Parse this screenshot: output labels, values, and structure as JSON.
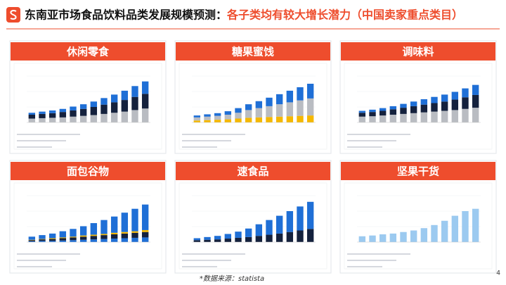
{
  "header": {
    "title_main": "东南亚市场食品饮料品类发展规模预测：",
    "title_highlight": "各子类均有较大增长潜力（中国卖家重点类目）"
  },
  "chart_data": [
    {
      "type": "bar",
      "title": "休闲零食",
      "ylim": [
        0,
        1.2
      ],
      "series": [
        {
          "color": "#b9bcc2",
          "values": [
            0.1,
            0.11,
            0.12,
            0.13,
            0.15,
            0.17,
            0.19,
            0.22,
            0.25,
            0.28,
            0.32,
            0.36
          ]
        },
        {
          "color": "#14213d",
          "values": [
            0.1,
            0.11,
            0.12,
            0.14,
            0.16,
            0.18,
            0.21,
            0.24,
            0.27,
            0.3,
            0.34,
            0.38
          ]
        },
        {
          "color": "#1f6fd6",
          "values": [
            0.05,
            0.06,
            0.07,
            0.08,
            0.1,
            0.12,
            0.14,
            0.17,
            0.2,
            0.24,
            0.28,
            0.32
          ]
        }
      ]
    },
    {
      "type": "bar",
      "title": "糖果蜜饯",
      "ylim": [
        0,
        1.2
      ],
      "series": [
        {
          "color": "#f5b800",
          "values": [
            0.05,
            0.06,
            0.07,
            0.08,
            0.1,
            0.12,
            0.13,
            0.14,
            0.15,
            0.16,
            0.17,
            0.18
          ]
        },
        {
          "color": "#b9bcc2",
          "values": [
            0.08,
            0.09,
            0.1,
            0.12,
            0.15,
            0.2,
            0.24,
            0.28,
            0.32,
            0.36,
            0.4,
            0.44
          ]
        },
        {
          "color": "#1f6fd6",
          "values": [
            0.05,
            0.06,
            0.07,
            0.09,
            0.12,
            0.15,
            0.18,
            0.22,
            0.26,
            0.3,
            0.34,
            0.38
          ]
        }
      ]
    },
    {
      "type": "bar",
      "title": "调味料",
      "ylim": [
        0,
        1.2
      ],
      "series": [
        {
          "color": "#b9bcc2",
          "values": [
            0.15,
            0.16,
            0.18,
            0.2,
            0.22,
            0.24,
            0.26,
            0.28,
            0.3,
            0.32,
            0.35,
            0.38
          ]
        },
        {
          "color": "#14213d",
          "values": [
            0.1,
            0.11,
            0.12,
            0.14,
            0.16,
            0.18,
            0.2,
            0.22,
            0.24,
            0.27,
            0.3,
            0.33
          ]
        },
        {
          "color": "#1f6fd6",
          "values": [
            0.05,
            0.06,
            0.07,
            0.08,
            0.1,
            0.12,
            0.14,
            0.16,
            0.18,
            0.2,
            0.23,
            0.26
          ]
        }
      ]
    },
    {
      "type": "bar",
      "title": "面包谷物",
      "ylim": [
        0,
        1.2
      ],
      "series": [
        {
          "color": "#1f6fd6",
          "values": [
            0.02,
            0.03,
            0.03,
            0.04,
            0.05,
            0.06,
            0.07,
            0.08,
            0.09,
            0.1,
            0.11,
            0.12
          ]
        },
        {
          "color": "#14213d",
          "values": [
            0.03,
            0.04,
            0.05,
            0.06,
            0.07,
            0.08,
            0.09,
            0.1,
            0.11,
            0.12,
            0.13,
            0.14
          ]
        },
        {
          "color": "#f5b800",
          "values": [
            0.01,
            0.01,
            0.02,
            0.02,
            0.02,
            0.03,
            0.03,
            0.03,
            0.04,
            0.04,
            0.04,
            0.05
          ]
        },
        {
          "color": "#1f6fd6",
          "values": [
            0.08,
            0.1,
            0.12,
            0.16,
            0.2,
            0.24,
            0.3,
            0.36,
            0.42,
            0.5,
            0.58,
            0.66
          ]
        }
      ]
    },
    {
      "type": "bar",
      "title": "速食品",
      "ylim": [
        0,
        1.2
      ],
      "series": [
        {
          "color": "#14213d",
          "values": [
            0.05,
            0.06,
            0.07,
            0.09,
            0.11,
            0.13,
            0.16,
            0.19,
            0.22,
            0.26,
            0.3,
            0.34
          ]
        },
        {
          "color": "#1f6fd6",
          "values": [
            0.05,
            0.07,
            0.09,
            0.12,
            0.16,
            0.22,
            0.3,
            0.38,
            0.46,
            0.54,
            0.62,
            0.7
          ]
        }
      ]
    },
    {
      "type": "bar",
      "title": "坚果干货",
      "ylim": [
        0,
        1.2
      ],
      "series": [
        {
          "color": "#9ccaf0",
          "values": [
            0.15,
            0.17,
            0.2,
            0.22,
            0.26,
            0.3,
            0.36,
            0.44,
            0.55,
            0.68,
            0.8,
            0.86
          ]
        }
      ]
    }
  ],
  "footer": {
    "source": "*数据来源：statista",
    "page": "4"
  }
}
